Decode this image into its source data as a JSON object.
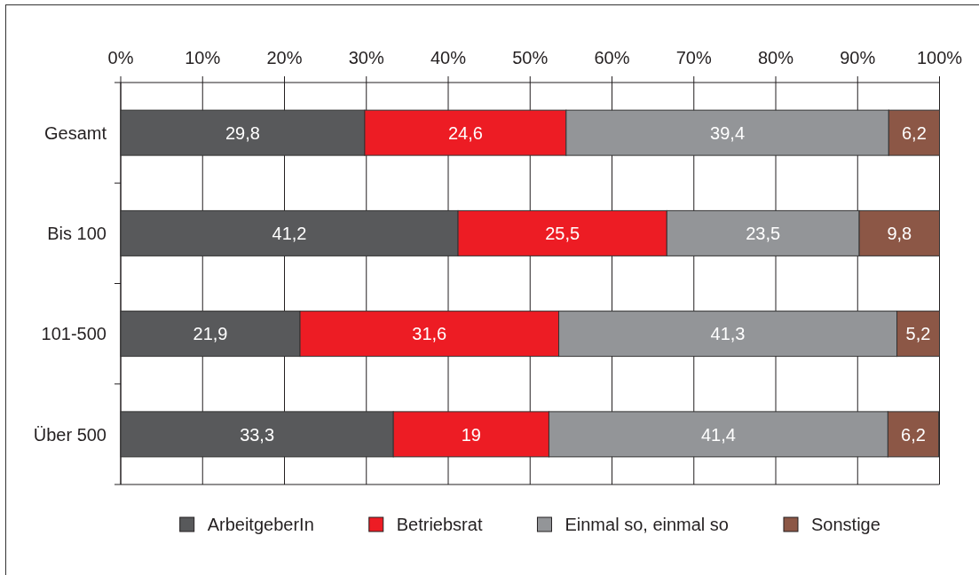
{
  "chart_data": {
    "type": "bar",
    "orientation": "horizontal",
    "stacked": true,
    "categories": [
      "Gesamt",
      "Bis 100",
      "101-500",
      "Über 500"
    ],
    "series": [
      {
        "name": "ArbeitgeberIn",
        "color": "#58595b",
        "values": [
          29.8,
          41.2,
          21.9,
          33.3
        ],
        "value_labels": [
          "29,8",
          "41,2",
          "21,9",
          "33,3"
        ]
      },
      {
        "name": "Betriebsrat",
        "color": "#ed1c24",
        "values": [
          24.6,
          25.5,
          31.6,
          19
        ],
        "value_labels": [
          "24,6",
          "25,5",
          "31,6",
          "19"
        ]
      },
      {
        "name": "Einmal so, einmal so",
        "color": "#939598",
        "values": [
          39.4,
          23.5,
          41.3,
          41.4
        ],
        "value_labels": [
          "39,4",
          "23,5",
          "41,3",
          "41,4"
        ]
      },
      {
        "name": "Sonstige",
        "color": "#8c5746",
        "values": [
          6.2,
          9.8,
          5.2,
          6.2
        ],
        "value_labels": [
          "6,2",
          "9,8",
          "5,2",
          "6,2"
        ]
      }
    ],
    "xlim": [
      0,
      100
    ],
    "xticks": [
      {
        "value": 0,
        "label": "0%"
      },
      {
        "value": 10,
        "label": "10%"
      },
      {
        "value": 20,
        "label": "20%"
      },
      {
        "value": 30,
        "label": "30%"
      },
      {
        "value": 40,
        "label": "40%"
      },
      {
        "value": 50,
        "label": "50%"
      },
      {
        "value": 60,
        "label": "60%"
      },
      {
        "value": 70,
        "label": "70%"
      },
      {
        "value": 80,
        "label": "80%"
      },
      {
        "value": 90,
        "label": "90%"
      },
      {
        "value": 100,
        "label": "100%"
      }
    ],
    "grid": "x",
    "legend": "bottom"
  }
}
